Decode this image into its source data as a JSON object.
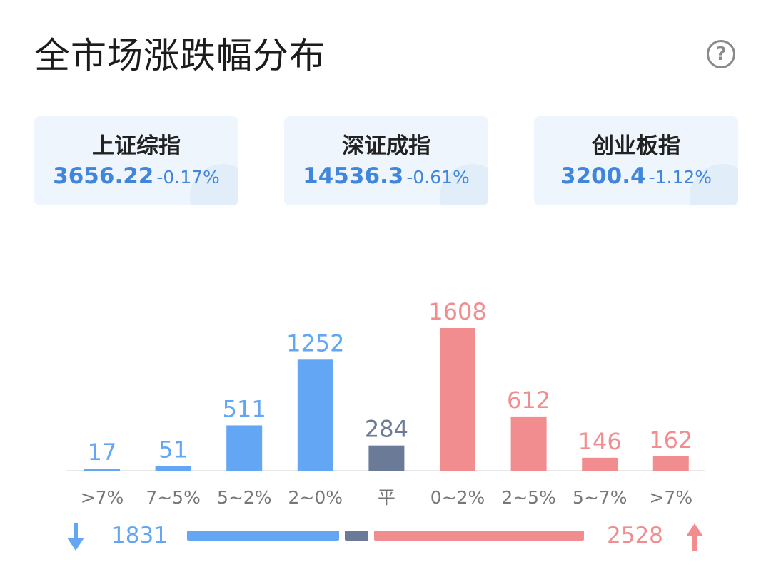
{
  "title": "全市场涨跌幅分布",
  "help_icon": "?",
  "indices": [
    {
      "name": "上证综指",
      "value": "3656.22",
      "change": "-0.17%"
    },
    {
      "name": "深证成指",
      "value": "14536.3",
      "change": "-0.61%"
    },
    {
      "name": "创业板指",
      "value": "3200.4",
      "change": "-1.12%"
    }
  ],
  "colors": {
    "down": "#62a6f4",
    "flat": "#6b7a96",
    "up": "#f28d8f"
  },
  "chart_data": {
    "type": "bar",
    "categories": [
      ">7%",
      "7~5%",
      "5~2%",
      "2~0%",
      "平",
      "0~2%",
      "2~5%",
      "5~7%",
      ">7%"
    ],
    "values": [
      17,
      51,
      511,
      1252,
      284,
      1608,
      612,
      146,
      162
    ],
    "groups": [
      "down",
      "down",
      "down",
      "down",
      "flat",
      "up",
      "up",
      "up",
      "up"
    ],
    "ylim": [
      0,
      1608
    ],
    "grid": false
  },
  "summary": {
    "down_icon": "arrow-down-icon",
    "down_count": "1831",
    "flat_count": 284,
    "up_count": "2528",
    "up_icon": "arrow-up-icon"
  }
}
